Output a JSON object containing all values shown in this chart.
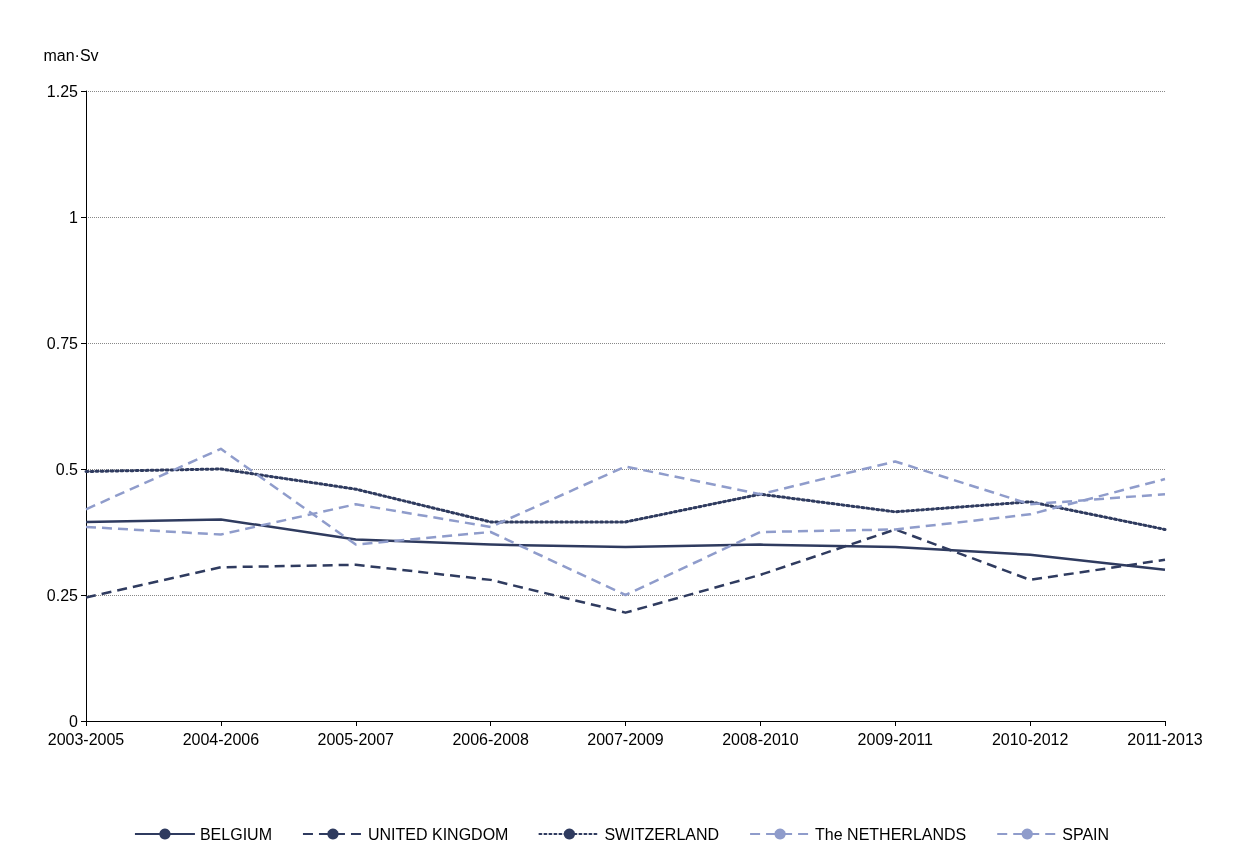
{
  "chart_data": {
    "type": "line",
    "ylabel": "man·Sv",
    "categories": [
      "2003-2005",
      "2004-2006",
      "2005-2007",
      "2006-2008",
      "2007-2009",
      "2008-2010",
      "2009-2011",
      "2010-2012",
      "2011-2013"
    ],
    "ylim": [
      0,
      1.25
    ],
    "yticks": [
      0,
      0.25,
      0.5,
      0.75,
      1,
      1.25
    ],
    "grid": "y",
    "legend": "bottom",
    "marker": "none",
    "series": [
      {
        "name": "BELGIUM",
        "color": "#2f3b5f",
        "line_style": "solid",
        "values": [
          0.395,
          0.4,
          0.36,
          0.35,
          0.345,
          0.35,
          0.345,
          0.33,
          0.3
        ]
      },
      {
        "name": "UNITED KINGDOM",
        "color": "#2f3b5f",
        "line_style": "dashed",
        "values": [
          0.245,
          0.305,
          0.31,
          0.28,
          0.215,
          0.29,
          0.38,
          0.28,
          0.32
        ]
      },
      {
        "name": "SWITZERLAND",
        "color": "#2f3b5f",
        "line_style": "dotted",
        "values": [
          0.495,
          0.5,
          0.46,
          0.395,
          0.395,
          0.45,
          0.415,
          0.435,
          0.38
        ]
      },
      {
        "name": "The NETHERLANDS",
        "color": "#8f9ccb",
        "line_style": "dashed",
        "values": [
          0.385,
          0.37,
          0.43,
          0.385,
          0.505,
          0.45,
          0.515,
          0.43,
          0.45
        ]
      },
      {
        "name": "SPAIN",
        "color": "#8f9ccb",
        "line_style": "dashed",
        "values": [
          0.42,
          0.54,
          0.35,
          0.375,
          0.25,
          0.375,
          0.38,
          0.41,
          0.48
        ]
      }
    ]
  }
}
